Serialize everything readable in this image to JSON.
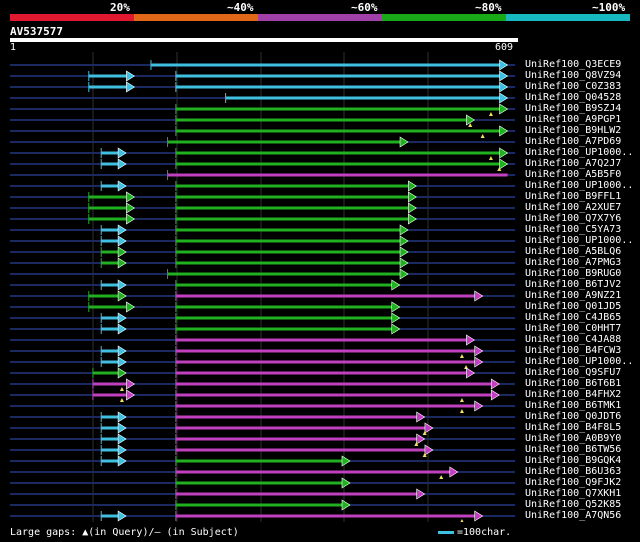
{
  "legend": {
    "labels": [
      "20%",
      "~40%",
      "~60%",
      "~80%",
      "~100%"
    ],
    "colors": [
      "#e01830",
      "#e06818",
      "#a040a8",
      "#18a818",
      "#18b8c0"
    ]
  },
  "query": {
    "id": "AV537577",
    "start": "1",
    "end": "609"
  },
  "grid_lines_at": [
    100,
    200,
    300,
    400,
    500
  ],
  "hits": [
    {
      "name": "UniRef100_Q3ECE9",
      "color": "cyan",
      "segments": [
        [
          170,
          600,
          false,
          true
        ]
      ],
      "marks": []
    },
    {
      "name": "UniRef100_Q8VZ94",
      "color": "cyan",
      "segments": [
        [
          95,
          150,
          false,
          true
        ],
        [
          200,
          600,
          false,
          true
        ]
      ],
      "marks": []
    },
    {
      "name": "UniRef100_C0Z383",
      "color": "cyan",
      "segments": [
        [
          95,
          150,
          false,
          true
        ],
        [
          200,
          600,
          false,
          true
        ]
      ],
      "marks": []
    },
    {
      "name": "UniRef100_Q04528",
      "color": "cyan",
      "segments": [
        [
          260,
          600,
          false,
          true
        ]
      ],
      "marks": []
    },
    {
      "name": "UniRef100_B9SZJ4",
      "color": "green",
      "segments": [
        [
          200,
          600,
          false,
          true
        ]
      ],
      "marks": [
        [
          580,
          "up"
        ]
      ]
    },
    {
      "name": "UniRef100_A9PGP1",
      "color": "green",
      "segments": [
        [
          200,
          560,
          false,
          true
        ]
      ],
      "marks": [
        [
          555,
          "up"
        ]
      ]
    },
    {
      "name": "UniRef100_B9HLW2",
      "color": "green",
      "segments": [
        [
          200,
          600,
          false,
          true
        ]
      ],
      "marks": [
        [
          570,
          "up"
        ]
      ]
    },
    {
      "name": "UniRef100_A7PD69",
      "color": "green",
      "segments": [
        [
          190,
          480,
          false,
          true
        ]
      ],
      "marks": []
    },
    {
      "name": "UniRef100_UP1000..",
      "color": "cyan-green",
      "segments": [
        [
          110,
          140,
          false,
          true
        ],
        [
          200,
          600,
          false,
          true
        ]
      ],
      "marks": [
        [
          580,
          "up"
        ]
      ]
    },
    {
      "name": "UniRef100_A7Q2J7",
      "color": "cyan-green",
      "segments": [
        [
          110,
          140,
          false,
          true
        ],
        [
          200,
          600,
          false,
          true
        ]
      ],
      "marks": [
        [
          590,
          "up"
        ]
      ]
    },
    {
      "name": "UniRef100_A5B5F0",
      "color": "magenta",
      "segments": [
        [
          190,
          600,
          false,
          false
        ]
      ],
      "marks": []
    },
    {
      "name": "UniRef100_UP1000..",
      "color": "cyan-green",
      "segments": [
        [
          110,
          140,
          false,
          true
        ],
        [
          200,
          490,
          false,
          true
        ]
      ],
      "marks": []
    },
    {
      "name": "UniRef100_B9FFL1",
      "color": "green",
      "segments": [
        [
          95,
          150,
          false,
          true
        ],
        [
          200,
          490,
          false,
          true
        ]
      ],
      "marks": []
    },
    {
      "name": "UniRef100_A2XUE7",
      "color": "green",
      "segments": [
        [
          95,
          150,
          false,
          true
        ],
        [
          200,
          490,
          false,
          true
        ]
      ],
      "marks": []
    },
    {
      "name": "UniRef100_Q7X7Y6",
      "color": "green",
      "segments": [
        [
          95,
          150,
          false,
          true
        ],
        [
          200,
          490,
          false,
          true
        ]
      ],
      "marks": []
    },
    {
      "name": "UniRef100_C5YA73",
      "color": "cyan-green",
      "segments": [
        [
          110,
          140,
          false,
          true
        ],
        [
          200,
          480,
          false,
          true
        ]
      ],
      "marks": []
    },
    {
      "name": "UniRef100_UP1000..",
      "color": "cyan-green",
      "segments": [
        [
          110,
          140,
          false,
          true
        ],
        [
          200,
          480,
          false,
          true
        ]
      ],
      "marks": []
    },
    {
      "name": "UniRef100_A5BLQ6",
      "color": "green",
      "segments": [
        [
          110,
          140,
          false,
          true
        ],
        [
          200,
          480,
          false,
          true
        ]
      ],
      "marks": []
    },
    {
      "name": "UniRef100_A7PMG3",
      "color": "green",
      "segments": [
        [
          110,
          140,
          false,
          true
        ],
        [
          200,
          480,
          false,
          true
        ]
      ],
      "marks": []
    },
    {
      "name": "UniRef100_B9RUG0",
      "color": "green",
      "segments": [
        [
          190,
          480,
          false,
          true
        ]
      ],
      "marks": []
    },
    {
      "name": "UniRef100_B6TJV2",
      "color": "cyan-green",
      "segments": [
        [
          110,
          140,
          false,
          true
        ],
        [
          200,
          470,
          false,
          true
        ]
      ],
      "marks": []
    },
    {
      "name": "UniRef100_A9NZ21",
      "color": "green-magenta",
      "segments": [
        [
          95,
          140,
          false,
          true
        ],
        [
          200,
          570,
          false,
          true
        ]
      ],
      "marks": []
    },
    {
      "name": "UniRef100_Q01JD5",
      "color": "green",
      "segments": [
        [
          95,
          150,
          false,
          true
        ],
        [
          200,
          470,
          false,
          true
        ]
      ],
      "marks": []
    },
    {
      "name": "UniRef100_C4JB65",
      "color": "cyan-green",
      "segments": [
        [
          110,
          140,
          false,
          true
        ],
        [
          200,
          470,
          false,
          true
        ]
      ],
      "marks": []
    },
    {
      "name": "UniRef100_C0HHT7",
      "color": "cyan-green",
      "segments": [
        [
          110,
          140,
          false,
          true
        ],
        [
          200,
          470,
          false,
          true
        ]
      ],
      "marks": []
    },
    {
      "name": "UniRef100_C4JA88",
      "color": "magenta",
      "segments": [
        [
          200,
          560,
          false,
          true
        ]
      ],
      "marks": []
    },
    {
      "name": "UniRef100_B4FCW3",
      "color": "cyan-magenta",
      "segments": [
        [
          110,
          140,
          false,
          true
        ],
        [
          200,
          570,
          false,
          true
        ]
      ],
      "marks": [
        [
          545,
          "up"
        ]
      ]
    },
    {
      "name": "UniRef100_UP1000..",
      "color": "cyan-magenta",
      "segments": [
        [
          110,
          140,
          false,
          true
        ],
        [
          200,
          570,
          false,
          true
        ]
      ],
      "marks": [
        [
          550,
          "up"
        ]
      ]
    },
    {
      "name": "UniRef100_Q9SFU7",
      "color": "green-magenta",
      "segments": [
        [
          100,
          140,
          false,
          true
        ],
        [
          200,
          560,
          false,
          true
        ]
      ],
      "marks": []
    },
    {
      "name": "UniRef100_B6T6B1",
      "color": "magenta",
      "segments": [
        [
          100,
          150,
          false,
          true
        ],
        [
          200,
          590,
          false,
          true
        ]
      ],
      "marks": [
        [
          135,
          "up"
        ]
      ]
    },
    {
      "name": "UniRef100_B4FHX2",
      "color": "magenta",
      "segments": [
        [
          100,
          150,
          false,
          true
        ],
        [
          200,
          590,
          false,
          true
        ]
      ],
      "marks": [
        [
          135,
          "up"
        ],
        [
          545,
          "up"
        ]
      ]
    },
    {
      "name": "UniRef100_B6TMK1",
      "color": "magenta",
      "segments": [
        [
          200,
          570,
          false,
          true
        ]
      ],
      "marks": [
        [
          545,
          "up"
        ]
      ]
    },
    {
      "name": "UniRef100_Q0JDT6",
      "color": "cyan-magenta",
      "segments": [
        [
          110,
          140,
          false,
          true
        ],
        [
          200,
          500,
          false,
          true
        ]
      ],
      "marks": []
    },
    {
      "name": "UniRef100_B4F8L5",
      "color": "cyan-magenta",
      "segments": [
        [
          110,
          140,
          false,
          true
        ],
        [
          200,
          510,
          false,
          true
        ]
      ],
      "marks": [
        [
          500,
          "up"
        ]
      ]
    },
    {
      "name": "UniRef100_A0B9Y0",
      "color": "cyan-magenta",
      "segments": [
        [
          110,
          140,
          false,
          true
        ],
        [
          200,
          500,
          false,
          true
        ]
      ],
      "marks": [
        [
          490,
          "up"
        ]
      ]
    },
    {
      "name": "UniRef100_B6TW56",
      "color": "cyan-magenta",
      "segments": [
        [
          110,
          140,
          false,
          true
        ],
        [
          200,
          510,
          false,
          true
        ]
      ],
      "marks": [
        [
          500,
          "up"
        ]
      ]
    },
    {
      "name": "UniRef100_B9GQK4",
      "color": "cyan-green",
      "segments": [
        [
          110,
          140,
          false,
          true
        ],
        [
          200,
          410,
          false,
          true
        ]
      ],
      "marks": []
    },
    {
      "name": "UniRef100_B6U363",
      "color": "magenta",
      "segments": [
        [
          200,
          540,
          false,
          true
        ]
      ],
      "marks": [
        [
          520,
          "up"
        ]
      ]
    },
    {
      "name": "UniRef100_Q9FJK2",
      "color": "green",
      "segments": [
        [
          200,
          410,
          false,
          true
        ]
      ],
      "marks": []
    },
    {
      "name": "UniRef100_Q7XKH1",
      "color": "magenta",
      "segments": [
        [
          200,
          500,
          false,
          true
        ]
      ],
      "marks": []
    },
    {
      "name": "UniRef100_Q52K85",
      "color": "green",
      "segments": [
        [
          200,
          410,
          false,
          true
        ]
      ],
      "marks": []
    },
    {
      "name": "UniRef100_A7QN56",
      "color": "cyan-magenta",
      "segments": [
        [
          110,
          140,
          false,
          true
        ],
        [
          200,
          570,
          false,
          true
        ]
      ],
      "marks": [
        [
          545,
          "up"
        ]
      ]
    }
  ],
  "footer": {
    "text": "Large gaps: ▲(in Query)/– (in Subject)",
    "scale_text": "=100char."
  }
}
